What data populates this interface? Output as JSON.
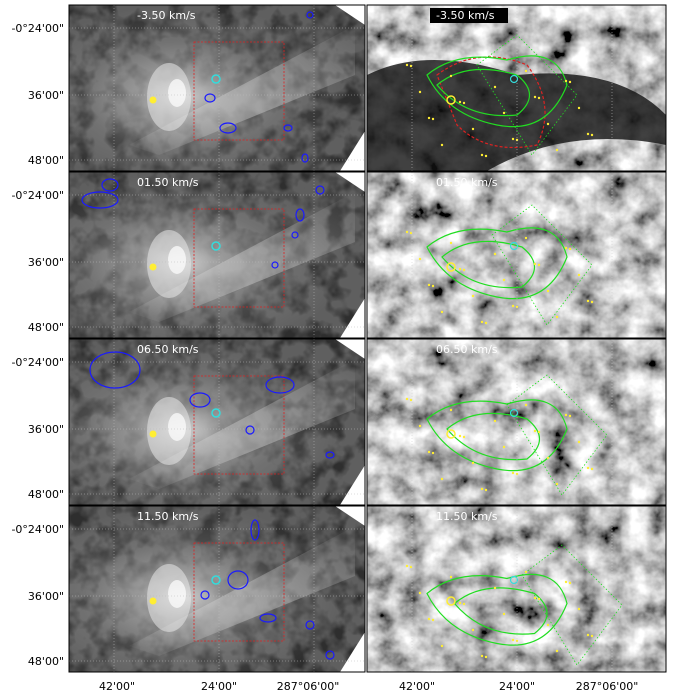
{
  "figure": {
    "y_tick_labels": [
      "-0°24'00\"",
      "36'00\"",
      "48'00\""
    ],
    "x_tick_labels": [
      "42'00\"",
      "24'00\"",
      "287°06'00\""
    ],
    "rows": [
      {
        "velocity_label": "-3.50 km/s"
      },
      {
        "velocity_label": "01.50 km/s"
      },
      {
        "velocity_label": "06.50 km/s"
      },
      {
        "velocity_label": "11.50 km/s"
      }
    ]
  },
  "colors": {
    "contour_blue": "#1a1aff",
    "contour_green": "#22dd22",
    "box_red": "#dd2222",
    "marker_yellow": "#ffee33",
    "marker_cyan": "#33dddd",
    "frame": "#000000"
  }
}
